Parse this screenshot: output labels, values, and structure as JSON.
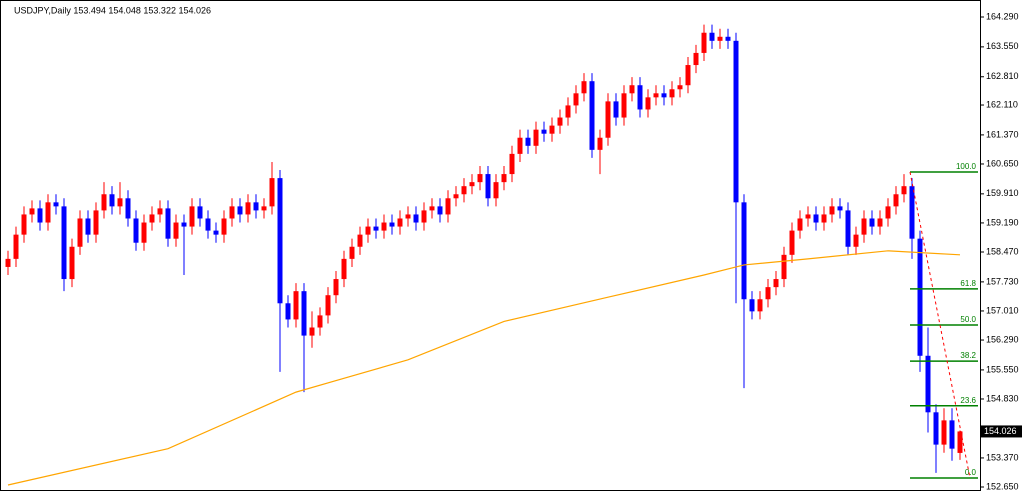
{
  "chart_data": {
    "type": "candlestick",
    "title": "USDJPY,Daily  153.494 154.048 153.322 154.026",
    "up_color": "#ff0000",
    "down_color": "#0000ff",
    "open": [
      158.1,
      158.3,
      158.9,
      159.4,
      159.55,
      159.2,
      159.7,
      159.6,
      157.8,
      158.6,
      159.3,
      158.9,
      159.5,
      159.9,
      159.6,
      159.8,
      159.3,
      158.7,
      159.2,
      159.4,
      159.55,
      158.8,
      159.2,
      159.1,
      159.6,
      159.3,
      159.0,
      158.9,
      159.3,
      159.6,
      159.4,
      159.7,
      159.5,
      159.6,
      160.3,
      157.2,
      156.8,
      157.5,
      156.4,
      156.6,
      156.9,
      157.4,
      157.8,
      158.3,
      158.6,
      158.9,
      159.1,
      159.0,
      159.2,
      159.1,
      159.3,
      159.4,
      159.2,
      159.5,
      159.6,
      159.4,
      159.8,
      159.9,
      160.1,
      160.2,
      160.4,
      159.8,
      160.2,
      160.4,
      160.9,
      161.3,
      161.1,
      161.5,
      161.4,
      161.6,
      161.8,
      162.1,
      162.4,
      162.7,
      161.0,
      161.3,
      162.2,
      161.8,
      162.4,
      162.6,
      162.0,
      162.3,
      162.4,
      162.3,
      162.5,
      162.6,
      163.1,
      163.4,
      163.9,
      163.7,
      163.8,
      163.7,
      159.7,
      157.3,
      157.0,
      157.3,
      157.6,
      157.8,
      158.4,
      159.0,
      159.3,
      159.4,
      159.2,
      159.4,
      159.6,
      159.5,
      158.6,
      158.9,
      159.3,
      159.1,
      159.3,
      159.6,
      159.9,
      160.1,
      158.8,
      155.9,
      154.5,
      153.7,
      154.3,
      153.494
    ],
    "high": [
      158.5,
      159.1,
      159.6,
      159.75,
      159.75,
      159.9,
      159.9,
      159.8,
      158.8,
      159.5,
      159.5,
      159.7,
      160.2,
      160.1,
      160.2,
      160.0,
      159.5,
      159.4,
      159.6,
      159.75,
      159.75,
      159.4,
      159.4,
      159.8,
      159.8,
      159.5,
      159.2,
      159.5,
      159.8,
      159.8,
      159.9,
      159.9,
      159.8,
      160.7,
      160.5,
      157.4,
      157.7,
      157.7,
      157.0,
      157.1,
      157.6,
      158.0,
      158.5,
      158.8,
      159.1,
      159.3,
      159.3,
      159.4,
      159.4,
      159.5,
      159.6,
      159.6,
      159.7,
      159.8,
      159.8,
      160.0,
      160.1,
      160.3,
      160.4,
      160.6,
      160.6,
      160.4,
      160.6,
      161.1,
      161.5,
      161.5,
      161.7,
      161.7,
      161.8,
      162.0,
      162.3,
      162.6,
      162.9,
      162.9,
      161.5,
      162.4,
      162.4,
      162.6,
      162.8,
      162.8,
      162.5,
      162.6,
      162.6,
      162.7,
      162.8,
      163.3,
      163.6,
      164.1,
      164.1,
      164.0,
      164.0,
      163.9,
      159.9,
      157.5,
      157.5,
      157.8,
      158.0,
      158.6,
      159.2,
      159.5,
      159.6,
      159.6,
      159.6,
      159.8,
      159.8,
      159.7,
      159.1,
      159.5,
      159.5,
      159.5,
      159.8,
      160.1,
      160.4,
      160.3,
      159.0,
      156.6,
      154.7,
      154.6,
      154.6,
      154.048
    ],
    "low": [
      157.9,
      158.1,
      158.7,
      159.2,
      159.0,
      159.0,
      159.4,
      157.5,
      157.6,
      158.4,
      158.7,
      158.7,
      159.3,
      159.4,
      159.4,
      159.1,
      158.5,
      158.5,
      159.0,
      159.2,
      158.6,
      158.6,
      157.9,
      158.9,
      159.1,
      158.8,
      158.7,
      158.7,
      159.1,
      159.2,
      159.2,
      159.3,
      159.3,
      159.4,
      155.5,
      156.6,
      156.6,
      155.0,
      156.1,
      156.4,
      156.7,
      157.2,
      157.6,
      158.1,
      158.4,
      158.7,
      158.8,
      158.8,
      158.9,
      158.9,
      159.1,
      159.0,
      159.0,
      159.3,
      159.2,
      159.2,
      159.6,
      159.7,
      159.9,
      160.0,
      159.6,
      159.6,
      160.0,
      160.2,
      160.7,
      160.9,
      160.9,
      161.2,
      161.2,
      161.4,
      161.6,
      161.9,
      162.2,
      160.8,
      160.4,
      161.1,
      161.6,
      161.6,
      162.2,
      161.8,
      161.8,
      162.1,
      162.1,
      162.1,
      162.3,
      162.4,
      162.9,
      163.2,
      163.5,
      163.5,
      163.5,
      157.2,
      155.1,
      156.8,
      156.8,
      157.1,
      157.4,
      157.6,
      158.2,
      158.8,
      159.1,
      159.0,
      159.0,
      159.2,
      159.3,
      158.4,
      158.4,
      158.7,
      158.9,
      158.9,
      159.1,
      159.4,
      159.7,
      158.3,
      155.5,
      154.0,
      153.0,
      153.5,
      153.3,
      153.322
    ],
    "close": [
      158.3,
      158.9,
      159.4,
      159.55,
      159.2,
      159.7,
      159.6,
      157.8,
      158.6,
      159.3,
      158.9,
      159.5,
      159.9,
      159.6,
      159.8,
      159.3,
      158.7,
      159.2,
      159.4,
      159.55,
      158.8,
      159.2,
      159.1,
      159.6,
      159.3,
      159.0,
      158.9,
      159.3,
      159.6,
      159.4,
      159.7,
      159.5,
      159.6,
      160.3,
      157.2,
      156.8,
      157.5,
      156.4,
      156.6,
      156.9,
      157.4,
      157.8,
      158.3,
      158.6,
      158.9,
      159.1,
      159.0,
      159.2,
      159.1,
      159.3,
      159.4,
      159.2,
      159.5,
      159.6,
      159.4,
      159.8,
      159.9,
      160.1,
      160.2,
      160.4,
      159.8,
      160.2,
      160.4,
      160.9,
      161.3,
      161.1,
      161.5,
      161.4,
      161.6,
      161.8,
      162.1,
      162.4,
      162.7,
      161.0,
      161.3,
      162.2,
      161.8,
      162.4,
      162.6,
      162.0,
      162.3,
      162.4,
      162.3,
      162.5,
      162.6,
      163.1,
      163.4,
      163.9,
      163.7,
      163.8,
      163.7,
      159.7,
      157.3,
      157.0,
      157.3,
      157.6,
      157.8,
      158.4,
      159.0,
      159.3,
      159.4,
      159.2,
      159.4,
      159.6,
      159.5,
      158.6,
      158.9,
      159.3,
      159.1,
      159.3,
      159.6,
      159.9,
      160.1,
      158.8,
      155.9,
      154.5,
      153.7,
      154.3,
      153.6,
      {
        "value": 154.026,
        "label": "154.026"
      }
    ],
    "ma": {
      "color": "#ffa500",
      "x": [
        0,
        20,
        36,
        50,
        62,
        75,
        87,
        92,
        100,
        110,
        119
      ],
      "values": [
        152.7,
        153.6,
        155.0,
        155.8,
        156.75,
        157.35,
        157.9,
        158.15,
        158.3,
        158.5,
        158.4
      ]
    },
    "fibo": {
      "color": "#008000",
      "line_color": "#ff0000",
      "levels": [
        {
          "value": 160.451,
          "label": "100.0"
        },
        {
          "value": 157.556,
          "label": "61.8"
        },
        {
          "value": 156.662,
          "label": "50.0"
        },
        {
          "value": 155.768,
          "label": "38.2"
        },
        {
          "value": 154.661,
          "label": "23.6"
        },
        {
          "value": 152.873,
          "label": "0.0"
        }
      ]
    },
    "ylim": [
      152.576,
      164.587
    ],
    "yticks": [
      {
        "value": 164.29,
        "label": "164.290"
      },
      {
        "value": 163.55,
        "label": "163.550"
      },
      {
        "value": 162.81,
        "label": "162.810"
      },
      {
        "value": 162.11,
        "label": "162.110"
      },
      {
        "value": 161.37,
        "label": "161.370"
      },
      {
        "value": 160.65,
        "label": "160.650"
      },
      {
        "value": 159.91,
        "label": "159.910"
      },
      {
        "value": 159.19,
        "label": "159.190"
      },
      {
        "value": 158.47,
        "label": "158.470"
      },
      {
        "value": 157.73,
        "label": "157.730"
      },
      {
        "value": 157.01,
        "label": "157.010"
      },
      {
        "value": 156.29,
        "label": "156.290"
      },
      {
        "value": 155.55,
        "label": "155.550"
      },
      {
        "value": 154.83,
        "label": "154.830"
      },
      {
        "value": 153.37,
        "label": "153.370"
      },
      {
        "value": 152.65,
        "label": "152.650"
      }
    ]
  }
}
